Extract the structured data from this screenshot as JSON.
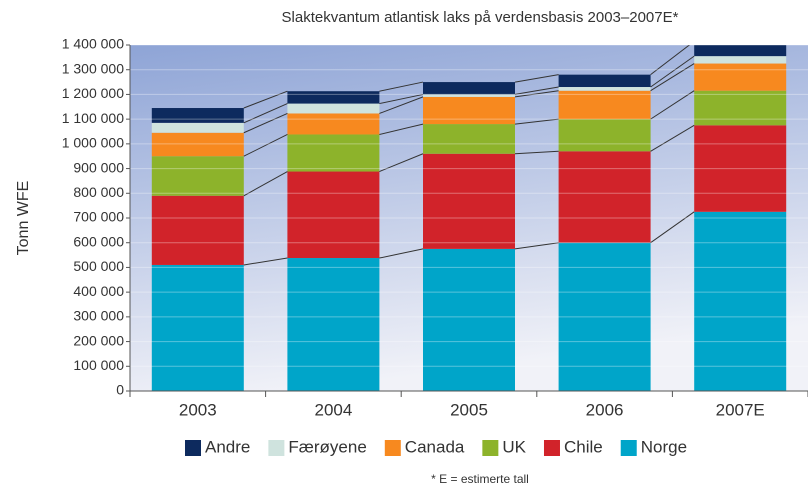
{
  "chart_data": {
    "type": "stacked_bar",
    "title": "Slaktekvantum atlantisk laks på verdensbasis 2003–2007E*",
    "y_label": "Tonn WFE",
    "footnote": "* E = estimerte tall",
    "categories": [
      "2003",
      "2004",
      "2005",
      "2006",
      "2007E"
    ],
    "series": [
      {
        "name": "Andre",
        "color": "#0d2a5e",
        "values": [
          60000,
          50000,
          50000,
          50000,
          60000
        ]
      },
      {
        "name": "Færøyene",
        "color": "#cfe3de",
        "values": [
          40000,
          40000,
          10000,
          15000,
          30000
        ]
      },
      {
        "name": "Canada",
        "color": "#f7891f",
        "values": [
          95000,
          85000,
          110000,
          115000,
          110000
        ]
      },
      {
        "name": "UK",
        "color": "#8db32b",
        "values": [
          160000,
          150000,
          120000,
          130000,
          140000
        ]
      },
      {
        "name": "Chile",
        "color": "#d1232a",
        "values": [
          280000,
          350000,
          385000,
          370000,
          350000
        ]
      },
      {
        "name": "Norge",
        "color": "#00a5c9",
        "values": [
          510000,
          538000,
          575000,
          600000,
          725000
        ]
      }
    ],
    "ylim": [
      0,
      1400000
    ],
    "yticks": [
      0,
      {
        "value": 100000,
        "label": "100 000"
      },
      {
        "value": 200000,
        "label": "200 000"
      },
      {
        "value": 300000,
        "label": "300 000"
      },
      {
        "value": 400000,
        "label": "400 000"
      },
      {
        "value": 500000,
        "label": "500 000"
      },
      {
        "value": 600000,
        "label": "600 000"
      },
      {
        "value": 700000,
        "label": "700 000"
      },
      {
        "value": 800000,
        "label": "800 000"
      },
      {
        "value": 900000,
        "label": "900 000"
      },
      {
        "value": 1000000,
        "label": "1 000 000"
      },
      {
        "value": 1100000,
        "label": "1 100 000"
      },
      {
        "value": 1200000,
        "label": "1 200 000"
      },
      {
        "value": 1300000,
        "label": "1 300 000"
      },
      {
        "value": 1400000,
        "label": "1 400 000"
      }
    ],
    "grid": true
  }
}
